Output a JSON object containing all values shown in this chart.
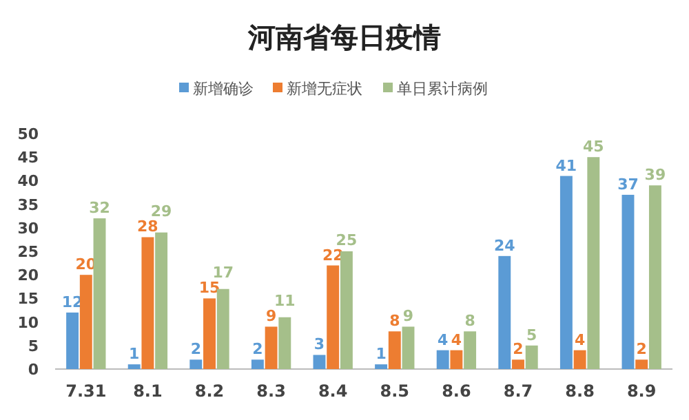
{
  "chart_data": {
    "type": "bar",
    "title": "河南省每日疫情",
    "categories": [
      "7.31",
      "8.1",
      "8.2",
      "8.3",
      "8.4",
      "8.5",
      "8.6",
      "8.7",
      "8.8",
      "8.9"
    ],
    "series": [
      {
        "name": "新增确诊",
        "color": "#5b9bd5",
        "values": [
          12,
          1,
          2,
          2,
          3,
          1,
          4,
          24,
          41,
          37
        ]
      },
      {
        "name": "新增无症状",
        "color": "#ed7d31",
        "values": [
          20,
          28,
          15,
          9,
          22,
          8,
          4,
          2,
          4,
          2
        ]
      },
      {
        "name": "单日累计病例",
        "color": "#a5bf8a",
        "values": [
          32,
          29,
          17,
          11,
          25,
          9,
          8,
          5,
          45,
          39
        ]
      }
    ],
    "ylim": [
      0,
      50
    ],
    "yticks": [
      0,
      5,
      10,
      15,
      20,
      25,
      30,
      35,
      40,
      45,
      50
    ],
    "grid": false,
    "legend": "top",
    "data_labels": true
  }
}
